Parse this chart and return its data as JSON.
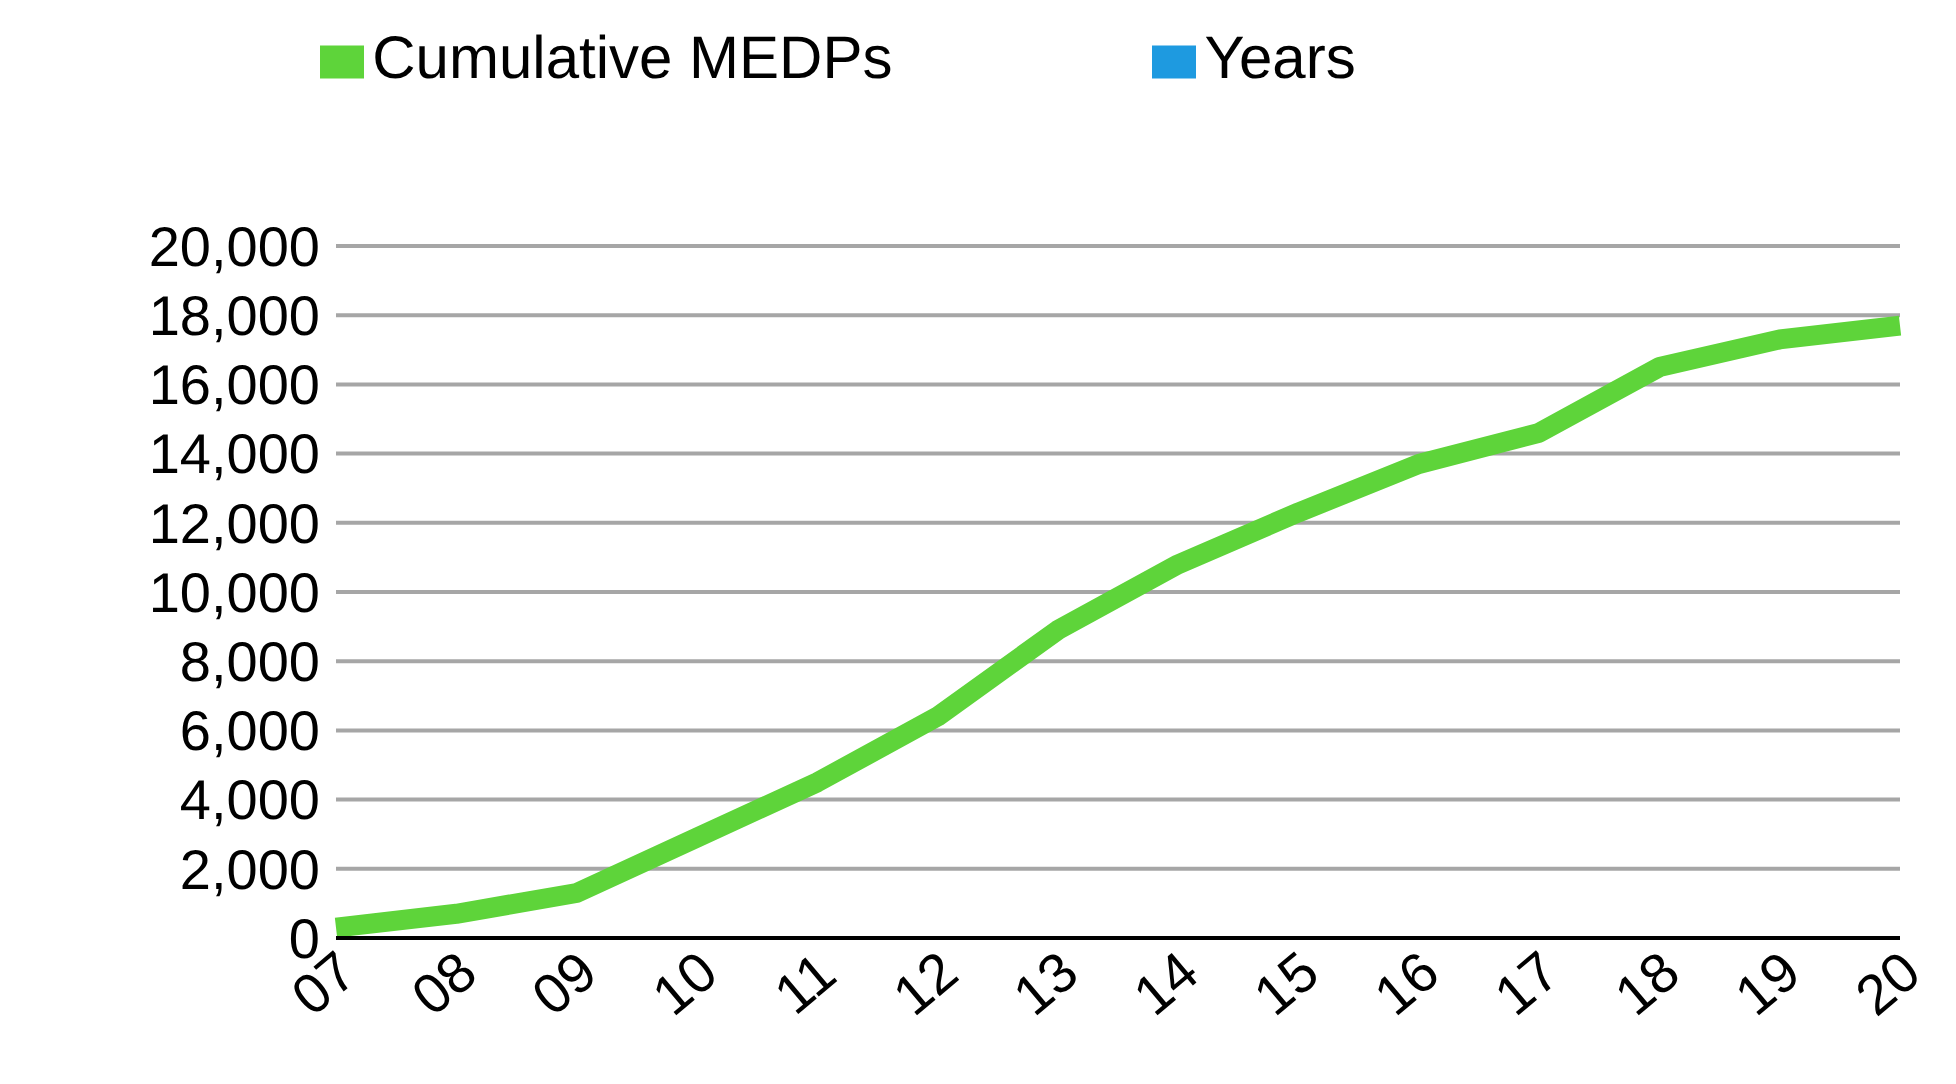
{
  "chart_data": {
    "type": "line",
    "categories": [
      "07",
      "08",
      "09",
      "10",
      "11",
      "12",
      "13",
      "14",
      "15",
      "16",
      "17",
      "18",
      "19",
      "20"
    ],
    "series": [
      {
        "name": "Years",
        "color": "#1e9ae0",
        "values": [
          null,
          null,
          null,
          null,
          null,
          null,
          null,
          null,
          null,
          null,
          null,
          null,
          null,
          null
        ]
      },
      {
        "name": "Cumulative MEDPs",
        "color": "#5ed43a",
        "values": [
          300,
          700,
          1300,
          2900,
          4500,
          6400,
          8900,
          10800,
          12300,
          13700,
          14600,
          16500,
          17300,
          17700
        ]
      }
    ],
    "ylim": [
      0,
      20000
    ],
    "yticks": [
      {
        "value": 0,
        "label": "0"
      },
      {
        "value": 2000,
        "label": "2,000"
      },
      {
        "value": 4000,
        "label": "4,000"
      },
      {
        "value": 6000,
        "label": "6,000"
      },
      {
        "value": 8000,
        "label": "8,000"
      },
      {
        "value": 10000,
        "label": "10,000"
      },
      {
        "value": 12000,
        "label": "12,000"
      },
      {
        "value": 14000,
        "label": "14,000"
      },
      {
        "value": 16000,
        "label": "16,000"
      },
      {
        "value": 18000,
        "label": "18,000"
      },
      {
        "value": 20000,
        "label": "20,000"
      }
    ],
    "grid": "y",
    "legend": "top",
    "marker": "none",
    "line_style": "solid"
  }
}
